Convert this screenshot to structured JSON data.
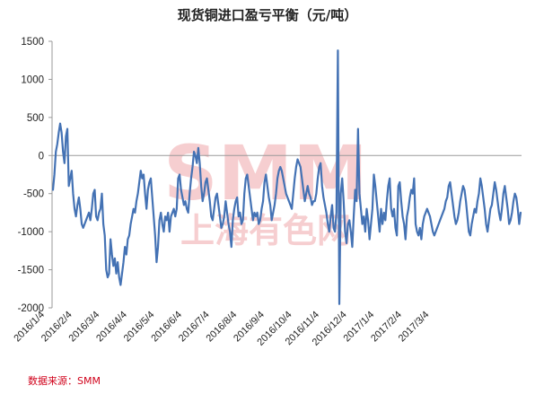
{
  "chart_data": {
    "type": "line",
    "title": "现货铜进口盈亏平衡（元/吨）",
    "source": "数据来源：SMM",
    "watermark": {
      "main": "SMM",
      "sub": "上海有色网"
    },
    "ylim": [
      -2000,
      1500
    ],
    "yticks": [
      1500,
      1000,
      500,
      0,
      -500,
      -1000,
      -1500,
      -2000
    ],
    "x_tick_labels": [
      "2016/1/4",
      "2016/2/4",
      "2016/3/4",
      "2016/4/4",
      "2016/5/4",
      "2016/6/4",
      "2016/7/4",
      "2016/8/4",
      "2016/9/4",
      "2016/10/4",
      "2016/11/4",
      "2016/12/4",
      "2017/1/4",
      "2017/2/4",
      "2017/3/4"
    ],
    "series_color": "#4472b4",
    "series": [
      {
        "values": [
          -450,
          -250,
          50,
          150,
          300,
          420,
          300,
          50,
          -100,
          250,
          350,
          -400,
          -300,
          -200,
          -500,
          -700,
          -800,
          -650,
          -550,
          -700,
          -900,
          -950,
          -900,
          -850,
          -800,
          -750,
          -850,
          -700,
          -500,
          -450,
          -800,
          -850,
          -750,
          -700,
          -500,
          -900,
          -1050,
          -1500,
          -1600,
          -1550,
          -1100,
          -1300,
          -1450,
          -1350,
          -1550,
          -1400,
          -1600,
          -1700,
          -1550,
          -1400,
          -1200,
          -1300,
          -1100,
          -1050,
          -900,
          -800,
          -700,
          -750,
          -600,
          -500,
          -350,
          -200,
          -300,
          -250,
          -500,
          -700,
          -450,
          -350,
          -300,
          -550,
          -800,
          -1050,
          -1400,
          -1200,
          -850,
          -750,
          -900,
          -1000,
          -800,
          -850,
          -750,
          -1000,
          -800,
          -750,
          -700,
          -800,
          -700,
          -300,
          -250,
          -450,
          -550,
          -650,
          -600,
          -700,
          -750,
          -500,
          -300,
          -150,
          50,
          0,
          -100,
          100,
          -100,
          -400,
          -600,
          -500,
          -350,
          -300,
          -450,
          -600,
          -800,
          -850,
          -700,
          -550,
          -500,
          -650,
          -800,
          -950,
          -900,
          -800,
          -600,
          -750,
          -900,
          -1000,
          -1200,
          -850,
          -700,
          -600,
          -550,
          -800,
          -750,
          -900,
          -850,
          -500,
          -300,
          -250,
          -400,
          -550,
          -700,
          -850,
          -750,
          -800,
          -750,
          -900,
          -850,
          -700,
          -600,
          -350,
          -250,
          -400,
          -550,
          -650,
          -850,
          -750,
          -650,
          -500,
          -300,
          -200,
          -150,
          -200,
          -300,
          -400,
          -500,
          -550,
          -600,
          -650,
          -700,
          -500,
          -300,
          -150,
          -50,
          -100,
          -150,
          -300,
          -450,
          -600,
          -500,
          -400,
          -500,
          -550,
          -650,
          -600,
          -600,
          -500,
          -300,
          -150,
          -100,
          -400,
          -550,
          -650,
          -750,
          -900,
          -1000,
          -800,
          -650,
          -950,
          -1000,
          -750,
          1380,
          -1950,
          -500,
          -300,
          -600,
          -1000,
          -1150,
          -900,
          -850,
          -1000,
          -1200,
          -800,
          -450,
          -600,
          350,
          -500,
          -700,
          -900,
          -800,
          -1000,
          -700,
          -850,
          -1100,
          -900,
          -700,
          -250,
          -400,
          -600,
          -800,
          -1000,
          -700,
          -900,
          -750,
          -850,
          -600,
          -400,
          -300,
          -700,
          -800,
          -700,
          -950,
          -1050,
          -400,
          -350,
          -600,
          -800,
          -900,
          -1100,
          -800,
          -700,
          -550,
          -450,
          -500,
          -300,
          -900,
          -1000,
          -1050,
          -950,
          -1100,
          -900,
          -800,
          -750,
          -700,
          -750,
          -800,
          -900,
          -1000,
          -1050,
          -1000,
          -950,
          -900,
          -850,
          -800,
          -750,
          -700,
          -600,
          -550,
          -400,
          -350,
          -500,
          -650,
          -800,
          -900,
          -850,
          -750,
          -600,
          -500,
          -400,
          -450,
          -600,
          -800,
          -1000,
          -1050,
          -900,
          -800,
          -700,
          -750,
          -600,
          -500,
          -300,
          -400,
          -550,
          -700,
          -900,
          -1000,
          -850,
          -700,
          -650,
          -500,
          -350,
          -450,
          -600,
          -750,
          -850,
          -700,
          -500,
          -400,
          -550,
          -700,
          -900,
          -850,
          -750,
          -600,
          -500,
          -550,
          -700,
          -900,
          -750
        ]
      }
    ]
  }
}
